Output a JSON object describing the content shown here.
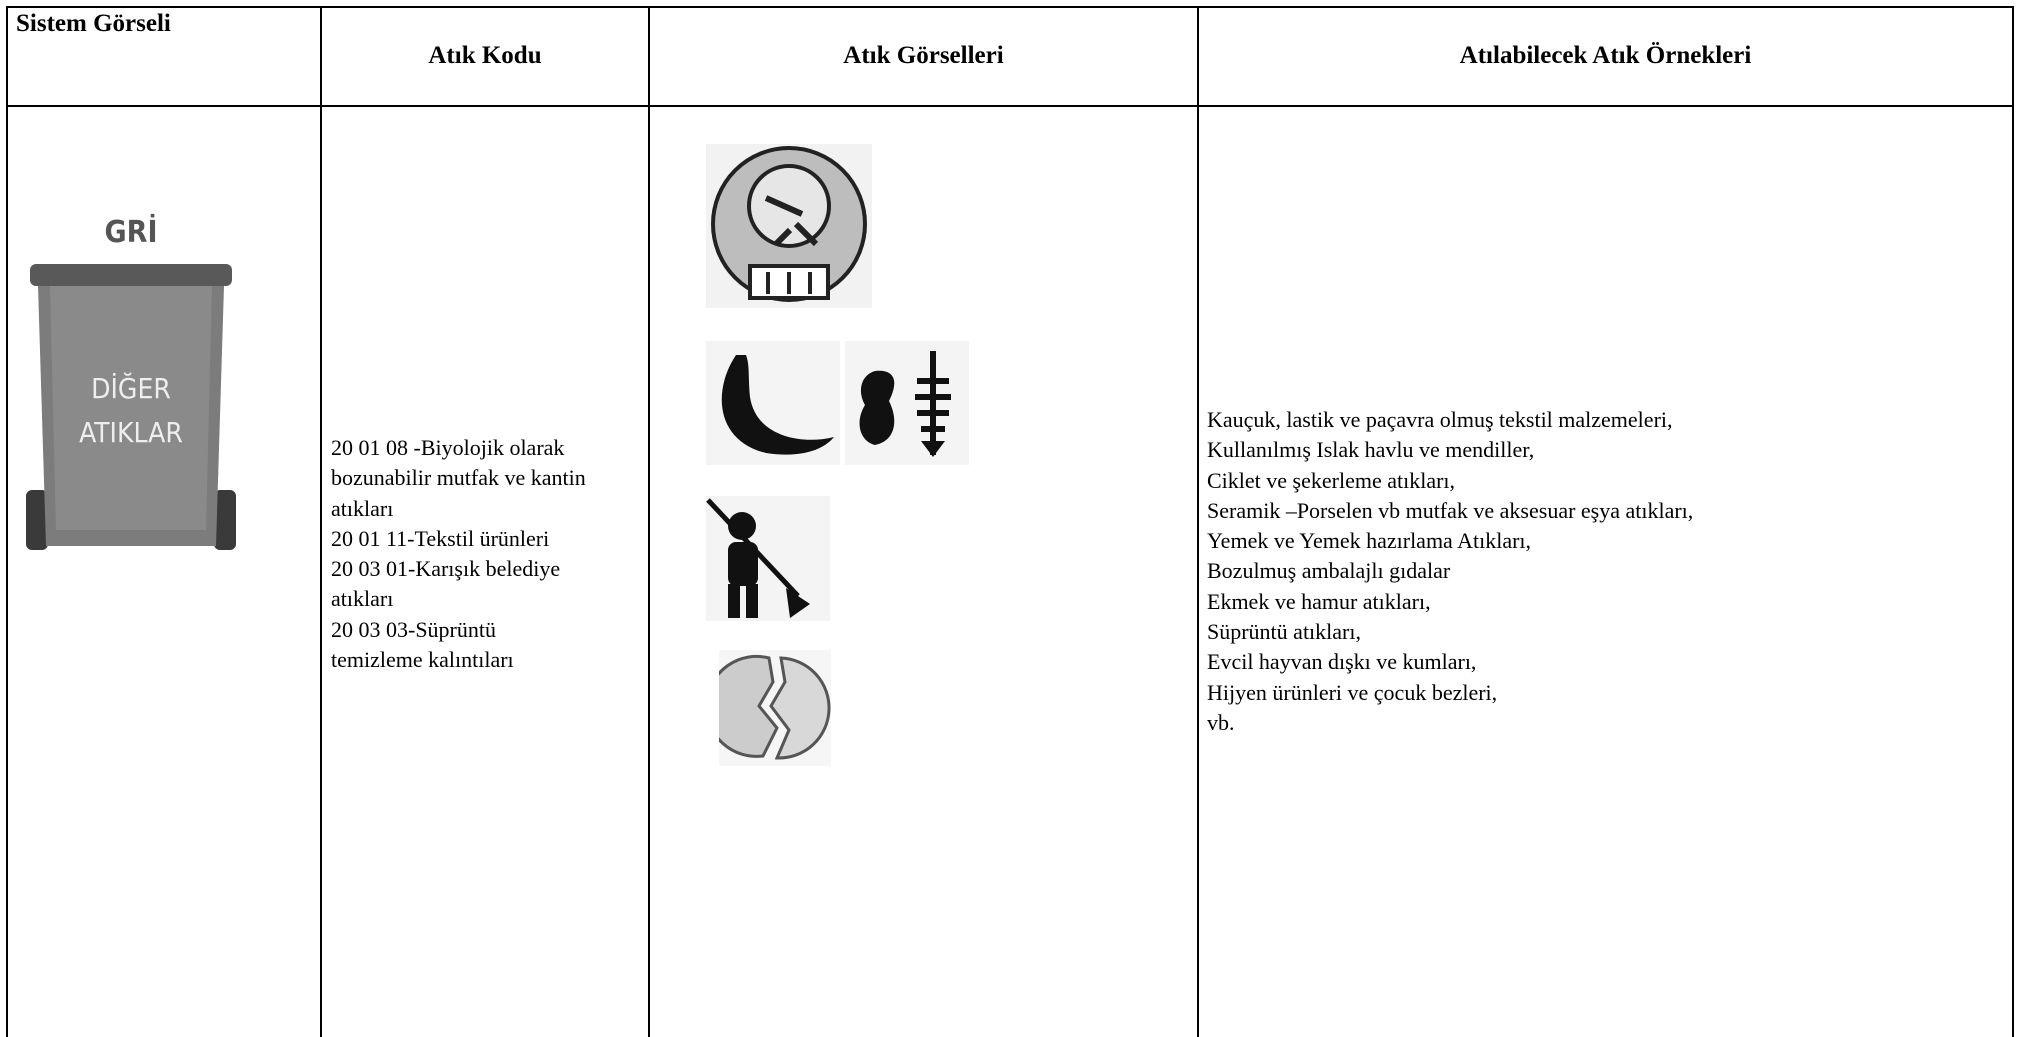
{
  "table": {
    "headers": [
      "Sistem Görseli",
      "Atık Kodu",
      "Atık Görselleri",
      "Atılabilecek Atık Örnekleri"
    ],
    "bin": {
      "color": "GRİ",
      "label": [
        "DİĞER",
        "ATIKLAR"
      ]
    },
    "codes": [
      "20 01 08 -Biyolojik olarak",
      "bozunabilir mutfak ve kantin",
      "atıkları",
      "20 01 11-Tekstil ürünleri",
      "20 03 01-Karışık belediye",
      "atıkları",
      "20 03 03-Süprüntü",
      "temizleme kalıntıları"
    ],
    "examples": [
      "Kauçuk, lastik ve paçavra olmuş tekstil malzemeleri,",
      "Kullanılmış Islak havlu ve mendiller,",
      "Ciklet ve şekerleme atıkları,",
      "Seramik –Porselen vb mutfak ve aksesuar eşya atıkları,",
      "Yemek ve Yemek hazırlama Atıkları,",
      "Bozulmuş ambalajlı gıdalar",
      "Ekmek ve hamur atıkları,",
      "Süprüntü atıkları,",
      "Evcil hayvan dışkı ve kumları,",
      "Hijyen ürünleri ve çocuk bezleri,",
      "vb."
    ]
  }
}
